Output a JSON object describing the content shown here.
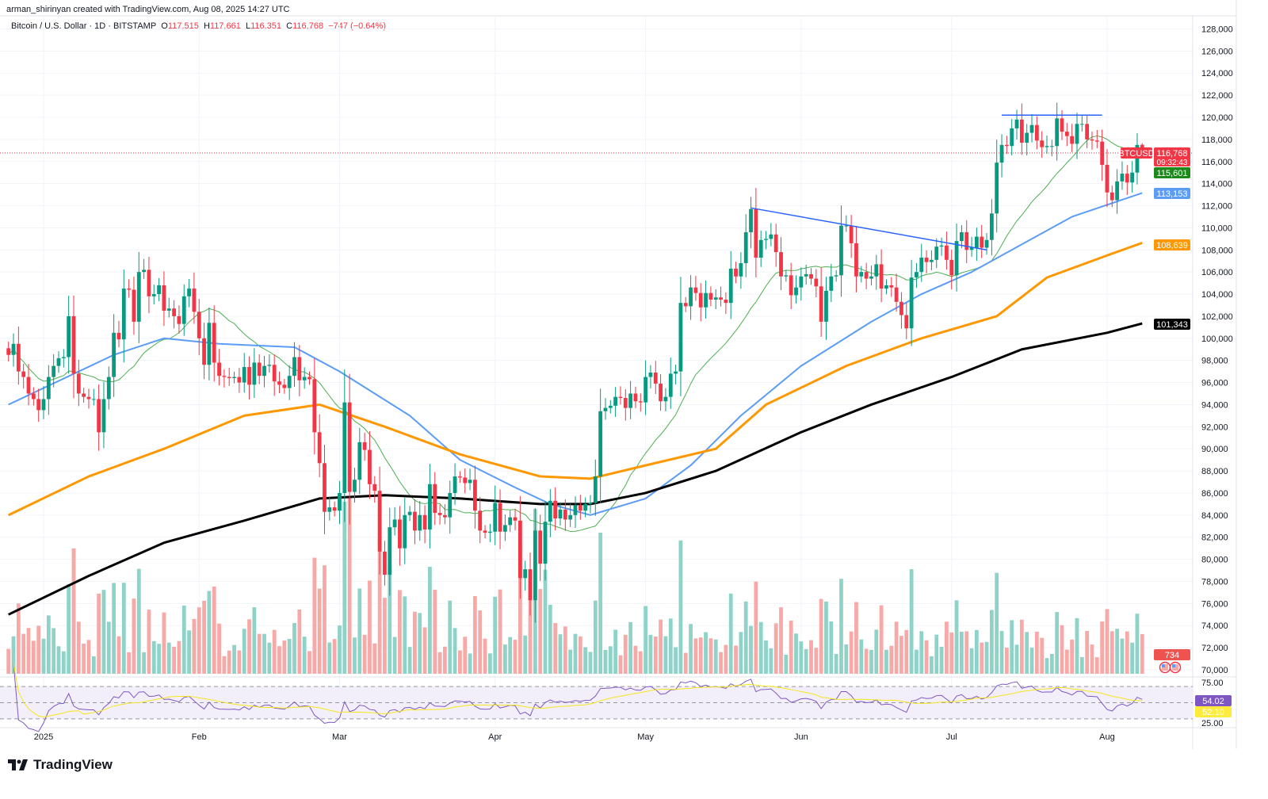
{
  "credit": "arman_shirinyan created with TradingView.com, Aug 08, 2025 14:27 UTC",
  "legend": {
    "symbol": "Bitcoin / U.S. Dollar · 1D · BITSTAMP",
    "o_label": "O",
    "o": "117,515",
    "h_label": "H",
    "h": "117,661",
    "l_label": "L",
    "l": "116,351",
    "c_label": "C",
    "c": "116,768",
    "change": "−747 (−0.64%)"
  },
  "logo": "TradingView",
  "colors": {
    "up": "#089981",
    "down": "#f23645",
    "vol_up": "#8fd3c8",
    "vol_down": "#f7a9a7",
    "ma20": "#4caf50",
    "ma50": "#5b9cf6",
    "ma100": "#ff9800",
    "ma200": "#000000",
    "rsi": "#7e57c2",
    "rsi_ma": "#f5e61b",
    "trendline": "#2962ff"
  },
  "price_tags": {
    "symbol": "BTCUSD",
    "last": "116,768",
    "countdown": "09:32:43",
    "ma20": "115,601",
    "ma50": "113,153",
    "ma100": "108,639",
    "ma200": "101,343",
    "volume": "734",
    "rsi": "54.02",
    "rsi_ma": "52.10"
  },
  "chart_data": {
    "type": "candlestick",
    "first_date": "2024-12-25",
    "ylim": [
      69000,
      129000
    ],
    "y_ticks": [
      70000,
      72000,
      74000,
      76000,
      78000,
      80000,
      82000,
      84000,
      86000,
      88000,
      90000,
      92000,
      94000,
      96000,
      98000,
      100000,
      102000,
      104000,
      106000,
      108000,
      110000,
      112000,
      114000,
      116000,
      118000,
      120000,
      122000,
      124000,
      126000,
      128000
    ],
    "x_ticks": [
      {
        "label": "2025",
        "date": "2025-01-01"
      },
      {
        "label": "Feb",
        "date": "2025-02-01"
      },
      {
        "label": "Mar",
        "date": "2025-03-01"
      },
      {
        "label": "Apr",
        "date": "2025-04-01"
      },
      {
        "label": "May",
        "date": "2025-05-01"
      },
      {
        "label": "Jun",
        "date": "2025-06-01"
      },
      {
        "label": "Jul",
        "date": "2025-07-01"
      },
      {
        "label": "Aug",
        "date": "2025-08-01"
      }
    ],
    "last_candle": {
      "open": 117515,
      "high": 117661,
      "low": 116351,
      "close": 116768
    },
    "closes": [
      98500,
      99500,
      97000,
      96500,
      95000,
      94500,
      93500,
      94500,
      96500,
      97500,
      98200,
      98300,
      102000,
      96800,
      95000,
      94700,
      94500,
      94500,
      91500,
      94500,
      96500,
      100500,
      99900,
      104500,
      104400,
      101500,
      106000,
      106200,
      103800,
      104000,
      104800,
      102500,
      102700,
      102000,
      101300,
      103800,
      104500,
      102400,
      100000,
      97600,
      101400,
      97800,
      96600,
      96500,
      96400,
      96500,
      96000,
      97400,
      95800,
      97800,
      96600,
      97500,
      97600,
      96100,
      95800,
      95500,
      96600,
      98300,
      96200,
      96500,
      96300,
      91500,
      88700,
      84300,
      84700,
      84400,
      86000,
      94200,
      86100,
      87200,
      90600,
      89900,
      86800,
      86200,
      80700,
      78600,
      82900,
      83600,
      81000,
      84000,
      84300,
      82600,
      84000,
      82700,
      86800,
      84200,
      84000,
      83800,
      86000,
      87500,
      87400,
      86900,
      87200,
      84400,
      82600,
      82400,
      82500,
      85100,
      82500,
      83100,
      83800,
      83500,
      78300,
      79100,
      76300,
      82600,
      79600,
      83400,
      85300,
      83700,
      84500,
      83600,
      84000,
      84900,
      84400,
      85000,
      85100,
      87500,
      93400,
      93700,
      93900,
      94700,
      94600,
      93700,
      95000,
      94300,
      94200,
      96500,
      96900,
      95900,
      94300,
      94700,
      96800,
      97000,
      103200,
      102900,
      104600,
      104100,
      102800,
      104100,
      103500,
      103700,
      103500,
      103200,
      106300,
      105600,
      106800,
      109600,
      111700,
      107300,
      108900,
      109000,
      109400,
      107800,
      105600,
      105700,
      103900,
      104600,
      105600,
      105800,
      105400,
      104700,
      101500,
      104300,
      105600,
      105700,
      110200,
      110200,
      108600,
      105600,
      106000,
      105400,
      105600,
      106700,
      104500,
      104800,
      104600,
      103300,
      102100,
      100900,
      105500,
      106000,
      107300,
      106900,
      107100,
      108300,
      108400,
      107100,
      105700,
      108800,
      109600,
      108000,
      108200,
      109200,
      108200,
      108900,
      111300,
      115900,
      117500,
      117400,
      119000,
      119800,
      117700,
      118600,
      119300,
      117900,
      117300,
      117400,
      117400,
      119900,
      118700,
      118300,
      117600,
      119400,
      119400,
      118000,
      117900,
      117800,
      115700,
      113200,
      112500,
      114200,
      114900,
      114100,
      115000,
      117500,
      116768
    ],
    "moving_averages": [
      {
        "id": "ma50",
        "points": [
          [
            "2024-12-25",
            94000
          ],
          [
            "2025-01-15",
            98500
          ],
          [
            "2025-01-25",
            100000
          ],
          [
            "2025-02-05",
            99500
          ],
          [
            "2025-02-20",
            99200
          ],
          [
            "2025-03-01",
            97000
          ],
          [
            "2025-03-15",
            93000
          ],
          [
            "2025-03-25",
            89000
          ],
          [
            "2025-04-05",
            86500
          ],
          [
            "2025-04-12",
            85000
          ],
          [
            "2025-04-20",
            84000
          ],
          [
            "2025-05-01",
            85500
          ],
          [
            "2025-05-10",
            88500
          ],
          [
            "2025-05-20",
            93000
          ],
          [
            "2025-06-01",
            97500
          ],
          [
            "2025-06-15",
            101500
          ],
          [
            "2025-06-25",
            104000
          ],
          [
            "2025-07-05",
            106000
          ],
          [
            "2025-07-15",
            108500
          ],
          [
            "2025-07-25",
            111000
          ],
          [
            "2025-08-08",
            113153
          ]
        ]
      },
      {
        "id": "ma100",
        "points": [
          [
            "2024-12-25",
            84000
          ],
          [
            "2025-01-10",
            87500
          ],
          [
            "2025-01-25",
            90000
          ],
          [
            "2025-02-10",
            93000
          ],
          [
            "2025-02-25",
            94000
          ],
          [
            "2025-03-10",
            92000
          ],
          [
            "2025-03-25",
            89500
          ],
          [
            "2025-04-10",
            87500
          ],
          [
            "2025-04-20",
            87300
          ],
          [
            "2025-05-01",
            88500
          ],
          [
            "2025-05-15",
            90000
          ],
          [
            "2025-05-25",
            94000
          ],
          [
            "2025-06-10",
            97500
          ],
          [
            "2025-06-25",
            100000
          ],
          [
            "2025-07-10",
            102000
          ],
          [
            "2025-07-20",
            105500
          ],
          [
            "2025-08-01",
            107500
          ],
          [
            "2025-08-08",
            108639
          ]
        ]
      },
      {
        "id": "ma200",
        "points": [
          [
            "2024-12-25",
            75000
          ],
          [
            "2025-01-10",
            78500
          ],
          [
            "2025-01-25",
            81500
          ],
          [
            "2025-02-10",
            83500
          ],
          [
            "2025-02-25",
            85500
          ],
          [
            "2025-03-10",
            85800
          ],
          [
            "2025-03-25",
            85500
          ],
          [
            "2025-04-10",
            85000
          ],
          [
            "2025-04-20",
            85000
          ],
          [
            "2025-05-01",
            86000
          ],
          [
            "2025-05-15",
            88000
          ],
          [
            "2025-06-01",
            91500
          ],
          [
            "2025-06-15",
            94000
          ],
          [
            "2025-07-01",
            96500
          ],
          [
            "2025-07-15",
            99000
          ],
          [
            "2025-08-01",
            100500
          ],
          [
            "2025-08-08",
            101343
          ]
        ]
      }
    ],
    "trendlines": [
      [
        [
          "2025-05-22",
          111800
        ],
        [
          "2025-07-08",
          108000
        ]
      ],
      [
        [
          "2025-07-11",
          120200
        ],
        [
          "2025-07-31",
          120200
        ]
      ]
    ],
    "rsi": {
      "ylim": [
        25,
        75
      ],
      "levels": [
        70,
        50,
        30
      ],
      "ticks": [
        "75.00",
        "25.00"
      ]
    }
  }
}
